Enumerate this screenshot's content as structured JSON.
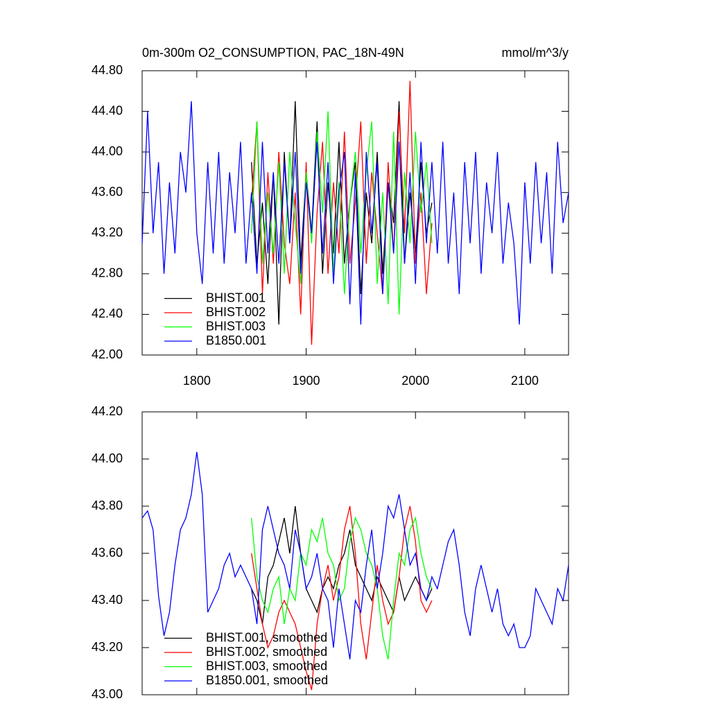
{
  "chart_data": [
    {
      "type": "line",
      "title": "0m-300m O2_CONSUMPTION, PAC_18N-49N",
      "units": "mmol/m^3/y",
      "xlim": [
        1750,
        2140
      ],
      "xticks": [
        1800,
        1900,
        2000,
        2100
      ],
      "xtick_labels": true,
      "ylim": [
        42,
        44.8
      ],
      "yticks": [
        {
          "value": 42,
          "label": "42.00"
        },
        {
          "value": 42.4,
          "label": "42.40"
        },
        {
          "value": 42.8,
          "label": "42.80"
        },
        {
          "value": 43.2,
          "label": "43.20"
        },
        {
          "value": 43.6,
          "label": "43.60"
        },
        {
          "value": 44,
          "label": "44.00"
        },
        {
          "value": 44.4,
          "label": "44.40"
        },
        {
          "value": 44.8,
          "label": "44.80"
        }
      ],
      "legend": "lower left",
      "series": [
        {
          "name": "BHIST.001",
          "color": "#000000",
          "x": [
            1850,
            1855,
            1860,
            1865,
            1870,
            1875,
            1880,
            1885,
            1890,
            1895,
            1900,
            1905,
            1910,
            1915,
            1920,
            1925,
            1930,
            1935,
            1940,
            1945,
            1950,
            1955,
            1960,
            1965,
            1970,
            1975,
            1980,
            1985,
            1990,
            1995,
            2000,
            2005,
            2010,
            2015
          ],
          "values": [
            43.9,
            42.9,
            43.5,
            42.7,
            43.8,
            42.3,
            44.0,
            43.1,
            44.5,
            42.9,
            43.8,
            43.2,
            44.3,
            42.8,
            43.7,
            43.0,
            44.1,
            42.9,
            43.5,
            43.9,
            42.6,
            43.6,
            43.1,
            44.0,
            42.8,
            43.7,
            43.3,
            44.5,
            42.9,
            43.6,
            43.0,
            43.9,
            43.2,
            43.5
          ]
        },
        {
          "name": "BHIST.002",
          "color": "#ff0000",
          "x": [
            1850,
            1855,
            1860,
            1865,
            1870,
            1875,
            1880,
            1885,
            1890,
            1895,
            1900,
            1905,
            1910,
            1915,
            1920,
            1925,
            1930,
            1935,
            1940,
            1945,
            1950,
            1955,
            1960,
            1965,
            1970,
            1975,
            1980,
            1985,
            1990,
            1995,
            2000,
            2005,
            2010,
            2015
          ],
          "values": [
            43.5,
            44.3,
            42.6,
            43.8,
            42.9,
            44.0,
            43.1,
            42.7,
            43.6,
            42.4,
            43.9,
            42.1,
            43.4,
            44.1,
            42.8,
            43.7,
            43.0,
            44.2,
            42.9,
            43.5,
            44.3,
            42.9,
            43.8,
            43.2,
            42.6,
            43.9,
            43.0,
            44.4,
            43.2,
            44.7,
            42.9,
            43.6,
            42.6,
            43.3
          ]
        },
        {
          "name": "BHIST.003",
          "color": "#00ff00",
          "x": [
            1850,
            1855,
            1860,
            1865,
            1870,
            1875,
            1880,
            1885,
            1890,
            1895,
            1900,
            1905,
            1910,
            1915,
            1920,
            1925,
            1930,
            1935,
            1940,
            1945,
            1950,
            1955,
            1960,
            1965,
            1970,
            1975,
            1980,
            1985,
            1990,
            1995,
            2000,
            2005,
            2010,
            2015
          ],
          "values": [
            43.2,
            44.3,
            42.9,
            43.6,
            43.0,
            43.9,
            42.8,
            44.0,
            43.3,
            42.7,
            43.8,
            43.1,
            44.2,
            43.4,
            44.4,
            42.8,
            43.7,
            42.6,
            43.5,
            44.0,
            43.0,
            43.8,
            44.3,
            42.7,
            43.6,
            42.5,
            44.2,
            42.4,
            43.8,
            43.1,
            44.2,
            43.4,
            43.9,
            43.1
          ]
        },
        {
          "name": "B1850.001",
          "color": "#0000ff",
          "x": [
            1750,
            1755,
            1760,
            1765,
            1770,
            1775,
            1780,
            1785,
            1790,
            1795,
            1800,
            1805,
            1810,
            1815,
            1820,
            1825,
            1830,
            1835,
            1840,
            1845,
            1850,
            1855,
            1860,
            1865,
            1870,
            1875,
            1880,
            1885,
            1890,
            1895,
            1900,
            1905,
            1910,
            1915,
            1920,
            1925,
            1930,
            1935,
            1940,
            1945,
            1950,
            1955,
            1960,
            1965,
            1970,
            1975,
            1980,
            1985,
            1990,
            1995,
            2000,
            2005,
            2010,
            2015,
            2020,
            2025,
            2030,
            2035,
            2040,
            2045,
            2050,
            2055,
            2060,
            2065,
            2070,
            2075,
            2080,
            2085,
            2090,
            2095,
            2100,
            2105,
            2110,
            2115,
            2120,
            2125,
            2130,
            2135,
            2140
          ],
          "values": [
            43.1,
            44.4,
            43.2,
            43.9,
            42.8,
            43.7,
            43.0,
            44.0,
            43.6,
            44.5,
            43.2,
            42.7,
            43.9,
            43.0,
            44.0,
            42.9,
            43.8,
            43.2,
            44.1,
            42.9,
            43.6,
            42.8,
            44.1,
            43.0,
            43.8,
            42.9,
            43.9,
            43.1,
            44.0,
            42.8,
            43.7,
            43.2,
            44.1,
            43.0,
            43.9,
            42.7,
            43.6,
            44.0,
            42.5,
            43.8,
            42.3,
            44.0,
            43.2,
            43.9,
            42.6,
            43.7,
            43.0,
            44.1,
            42.9,
            43.8,
            42.7,
            44.1,
            43.1,
            43.9,
            43.0,
            44.1,
            42.9,
            43.6,
            42.6,
            43.9,
            43.1,
            44.0,
            42.8,
            43.7,
            43.2,
            44.0,
            42.9,
            43.5,
            43.1,
            42.3,
            43.7,
            42.9,
            43.9,
            43.1,
            43.8,
            42.8,
            44.1,
            43.3,
            43.6
          ]
        }
      ]
    },
    {
      "type": "line",
      "xlim": [
        1750,
        2140
      ],
      "xticks": [
        1800,
        1900,
        2000,
        2100
      ],
      "xtick_labels": false,
      "ylim": [
        43,
        44.2
      ],
      "yticks": [
        {
          "value": 43,
          "label": "43.00"
        },
        {
          "value": 43.2,
          "label": "43.20"
        },
        {
          "value": 43.4,
          "label": "43.40"
        },
        {
          "value": 43.6,
          "label": "43.60"
        },
        {
          "value": 43.8,
          "label": "43.80"
        },
        {
          "value": 44,
          "label": "44.00"
        },
        {
          "value": 44.2,
          "label": "44.20"
        }
      ],
      "legend": "lower left",
      "series": [
        {
          "name": "BHIST.001, smoothed",
          "color": "#000000",
          "x": [
            1850,
            1855,
            1860,
            1865,
            1870,
            1875,
            1880,
            1885,
            1890,
            1895,
            1900,
            1905,
            1910,
            1915,
            1920,
            1925,
            1930,
            1935,
            1940,
            1945,
            1950,
            1955,
            1960,
            1965,
            1970,
            1975,
            1980,
            1985,
            1990,
            1995,
            2000,
            2005,
            2010,
            2015
          ],
          "values": [
            43.45,
            43.4,
            43.3,
            43.5,
            43.55,
            43.65,
            43.75,
            43.6,
            43.8,
            43.6,
            43.45,
            43.4,
            43.35,
            43.45,
            43.5,
            43.45,
            43.55,
            43.6,
            43.7,
            43.55,
            43.5,
            43.45,
            43.4,
            43.5,
            43.45,
            43.4,
            43.35,
            43.5,
            43.4,
            43.45,
            43.5,
            43.45,
            43.4,
            43.45
          ]
        },
        {
          "name": "BHIST.002, smoothed",
          "color": "#ff0000",
          "x": [
            1850,
            1855,
            1860,
            1865,
            1870,
            1875,
            1880,
            1885,
            1890,
            1895,
            1900,
            1905,
            1910,
            1915,
            1920,
            1925,
            1930,
            1935,
            1940,
            1945,
            1950,
            1955,
            1960,
            1965,
            1970,
            1975,
            1980,
            1985,
            1990,
            1995,
            2000,
            2005,
            2010,
            2015
          ],
          "values": [
            43.6,
            43.45,
            43.3,
            43.2,
            43.25,
            43.35,
            43.4,
            43.35,
            43.3,
            43.2,
            43.1,
            43.02,
            43.3,
            43.45,
            43.55,
            43.4,
            43.5,
            43.7,
            43.8,
            43.6,
            43.3,
            43.15,
            43.35,
            43.55,
            43.4,
            43.3,
            43.35,
            43.5,
            43.7,
            43.8,
            43.65,
            43.4,
            43.35,
            43.4
          ]
        },
        {
          "name": "BHIST.003, smoothed",
          "color": "#00ff00",
          "x": [
            1850,
            1855,
            1860,
            1865,
            1870,
            1875,
            1880,
            1885,
            1890,
            1895,
            1900,
            1905,
            1910,
            1915,
            1920,
            1925,
            1930,
            1935,
            1940,
            1945,
            1950,
            1955,
            1960,
            1965,
            1970,
            1975,
            1980,
            1985,
            1990,
            1995,
            2000,
            2005,
            2010,
            2015
          ],
          "values": [
            43.75,
            43.5,
            43.4,
            43.35,
            43.45,
            43.5,
            43.3,
            43.45,
            43.4,
            43.6,
            43.55,
            43.7,
            43.65,
            43.75,
            43.6,
            43.55,
            43.4,
            43.45,
            43.65,
            43.75,
            43.7,
            43.6,
            43.55,
            43.45,
            43.25,
            43.15,
            43.4,
            43.6,
            43.55,
            43.7,
            43.75,
            43.6,
            43.5,
            43.45
          ]
        },
        {
          "name": "B1850.001, smoothed",
          "color": "#0000ff",
          "x": [
            1750,
            1755,
            1760,
            1765,
            1770,
            1775,
            1780,
            1785,
            1790,
            1795,
            1800,
            1805,
            1810,
            1815,
            1820,
            1825,
            1830,
            1835,
            1840,
            1845,
            1850,
            1855,
            1860,
            1865,
            1870,
            1875,
            1880,
            1885,
            1890,
            1895,
            1900,
            1905,
            1910,
            1915,
            1920,
            1925,
            1930,
            1935,
            1940,
            1945,
            1950,
            1955,
            1960,
            1965,
            1970,
            1975,
            1980,
            1985,
            1990,
            1995,
            2000,
            2005,
            2010,
            2015,
            2020,
            2025,
            2030,
            2035,
            2040,
            2045,
            2050,
            2055,
            2060,
            2065,
            2070,
            2075,
            2080,
            2085,
            2090,
            2095,
            2100,
            2105,
            2110,
            2115,
            2120,
            2125,
            2130,
            2135,
            2140
          ],
          "values": [
            43.75,
            43.78,
            43.7,
            43.42,
            43.25,
            43.35,
            43.55,
            43.7,
            43.75,
            43.85,
            44.03,
            43.85,
            43.35,
            43.4,
            43.45,
            43.55,
            43.6,
            43.5,
            43.55,
            43.5,
            43.45,
            43.3,
            43.7,
            43.8,
            43.7,
            43.6,
            43.55,
            43.45,
            43.7,
            43.6,
            43.45,
            43.5,
            43.6,
            43.45,
            43.4,
            43.2,
            43.45,
            43.3,
            43.15,
            43.4,
            43.35,
            43.55,
            43.7,
            43.45,
            43.6,
            43.8,
            43.75,
            43.85,
            43.7,
            43.55,
            43.6,
            43.45,
            43.4,
            43.5,
            43.45,
            43.55,
            43.65,
            43.7,
            43.55,
            43.35,
            43.25,
            43.45,
            43.55,
            43.45,
            43.35,
            43.45,
            43.3,
            43.25,
            43.3,
            43.2,
            43.2,
            43.25,
            43.45,
            43.4,
            43.35,
            43.3,
            43.45,
            43.4,
            43.55
          ]
        }
      ]
    }
  ]
}
